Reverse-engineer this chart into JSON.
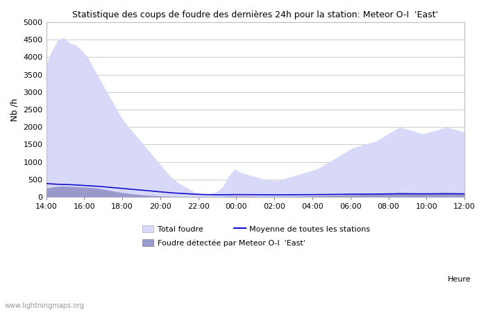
{
  "title": "Statistique des coups de foudre des dernières 24h pour la station: Meteor O-I  'East'",
  "ylabel": "Nb /h",
  "xlabel_right": "Heure",
  "watermark": "www.lightningmaps.org",
  "ylim": [
    0,
    5000
  ],
  "x_ticks": [
    "14:00",
    "16:00",
    "18:00",
    "20:00",
    "22:00",
    "00:00",
    "02:00",
    "04:00",
    "06:00",
    "08:00",
    "10:00",
    "12:00"
  ],
  "legend_total": "Total foudre",
  "legend_mean": "Moyenne de toutes les stations",
  "legend_detected": "Foudre détectée par Meteor O-I  'East'",
  "color_total_fill": "#d8d8f8",
  "color_total_edge": "#d8d8f8",
  "color_detected_fill": "#9999cc",
  "color_detected_edge": "#9999cc",
  "color_mean_line": "#1111cc",
  "background_color": "#ffffff",
  "grid_color": "#cccccc",
  "total_foudre": [
    3800,
    4200,
    4500,
    4560,
    4400,
    4350,
    4200,
    4000,
    3700,
    3400,
    3100,
    2800,
    2500,
    2200,
    2000,
    1800,
    1600,
    1400,
    1200,
    1000,
    800,
    600,
    450,
    350,
    250,
    150,
    100,
    80,
    100,
    150,
    300,
    600,
    800,
    700,
    650,
    600,
    550,
    500,
    480,
    460,
    500,
    550,
    600,
    650,
    700,
    750,
    800,
    900,
    1000,
    1100,
    1200,
    1300,
    1400,
    1450,
    1500,
    1550,
    1600,
    1700,
    1800,
    1900,
    2000,
    1950,
    1900,
    1850,
    1800,
    1850,
    1900,
    1950,
    2000,
    1950,
    1900,
    1850
  ],
  "detected_foudre": [
    250,
    280,
    300,
    310,
    300,
    290,
    280,
    270,
    260,
    240,
    210,
    180,
    150,
    120,
    100,
    80,
    60,
    50,
    40,
    30,
    20,
    15,
    10,
    8,
    6,
    5,
    5,
    5,
    5,
    8,
    12,
    20,
    25,
    22,
    20,
    18,
    16,
    15,
    14,
    14,
    15,
    18,
    20,
    22,
    25,
    28,
    30,
    35,
    40,
    45,
    50,
    55,
    60,
    65,
    70,
    75,
    80,
    90,
    100,
    110,
    120,
    115,
    110,
    105,
    100,
    105,
    110,
    115,
    120,
    115,
    110,
    105
  ],
  "mean_line": [
    380,
    370,
    360,
    355,
    350,
    340,
    330,
    320,
    310,
    300,
    285,
    270,
    255,
    240,
    225,
    210,
    195,
    180,
    165,
    150,
    135,
    120,
    108,
    98,
    88,
    78,
    70,
    65,
    62,
    60,
    60,
    62,
    65,
    65,
    64,
    63,
    62,
    61,
    60,
    59,
    59,
    60,
    61,
    62,
    63,
    64,
    65,
    67,
    69,
    71,
    73,
    75,
    77,
    78,
    79,
    80,
    81,
    83,
    85,
    87,
    90,
    89,
    88,
    87,
    86,
    87,
    88,
    89,
    90,
    89,
    88,
    87
  ]
}
